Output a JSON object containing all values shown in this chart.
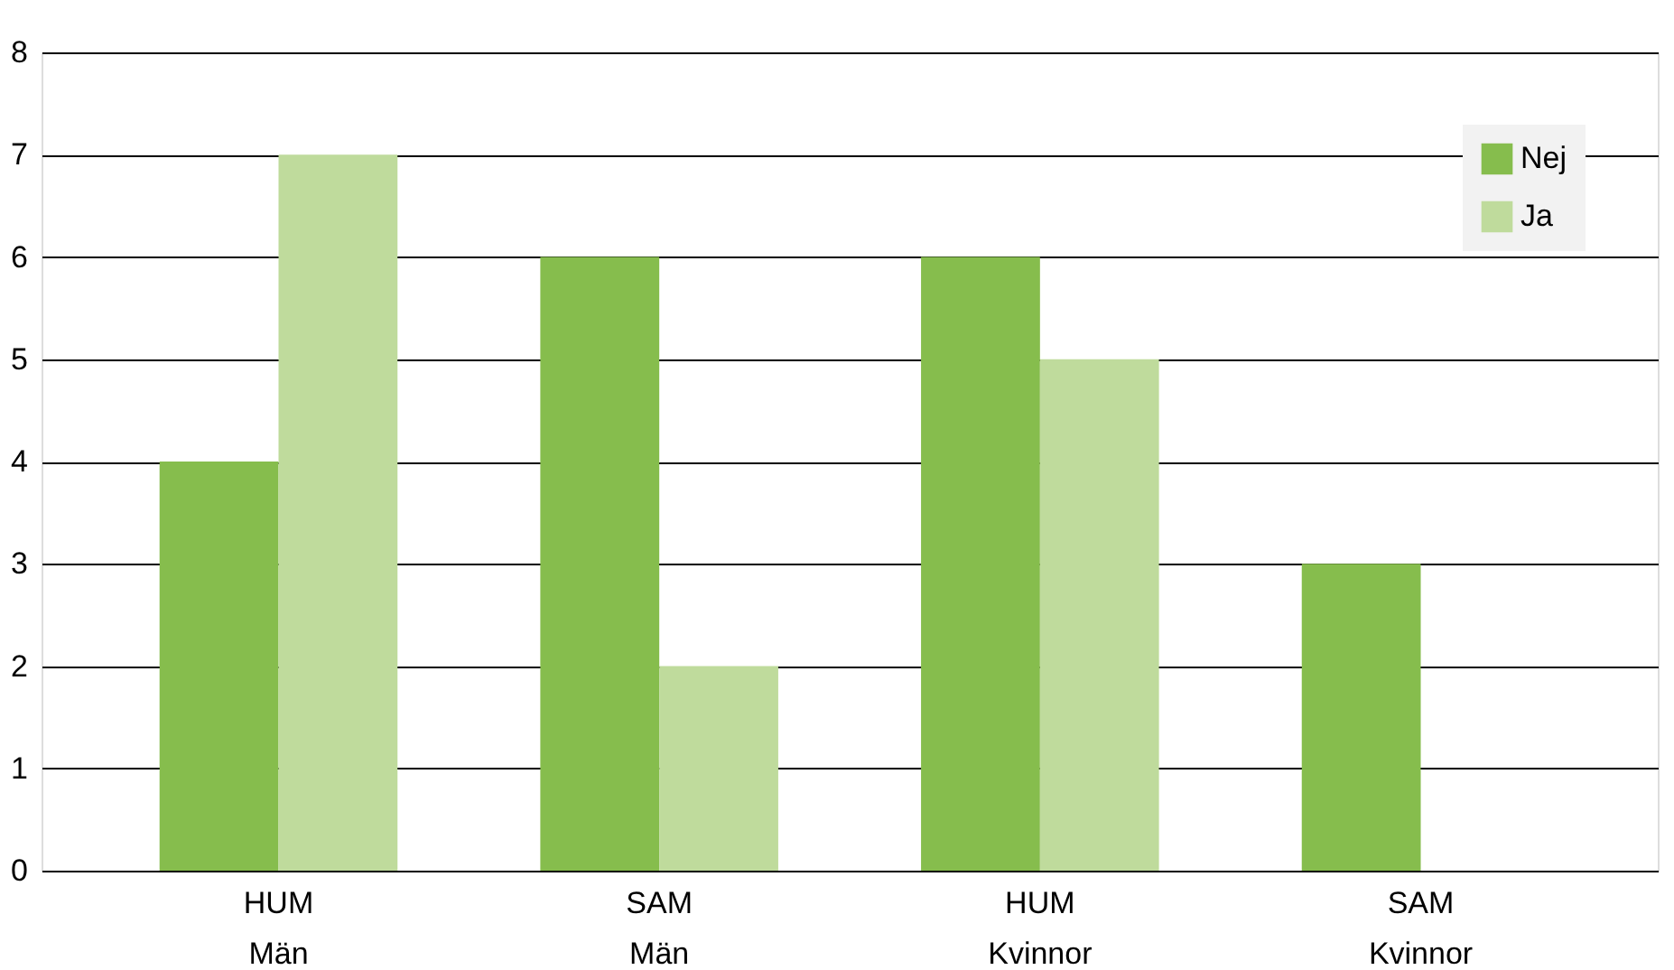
{
  "chart_data": {
    "type": "bar",
    "categories": [
      "HUM\nMän",
      "SAM\nMän",
      "HUM\nKvinnor",
      "SAM\nKvinnor"
    ],
    "series": [
      {
        "name": "Nej",
        "color": "#86bd4d",
        "values": [
          4,
          6,
          6,
          3
        ]
      },
      {
        "name": "Ja",
        "color": "#bfdb9c",
        "values": [
          7,
          2,
          5,
          0
        ]
      }
    ],
    "ylim": [
      0,
      8
    ],
    "yticks": [
      0,
      1,
      2,
      3,
      4,
      5,
      6,
      7,
      8
    ],
    "grid": "y",
    "legend": "top right"
  }
}
